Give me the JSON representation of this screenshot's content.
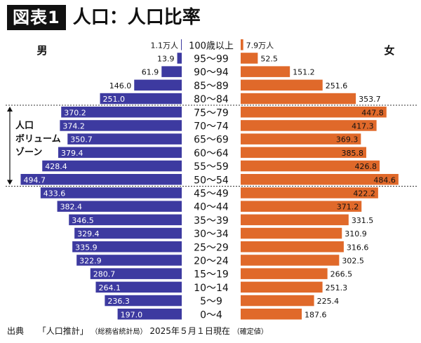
{
  "header": {
    "badge": "図表1",
    "title": "人口：人口比率"
  },
  "colors": {
    "male": "#3d3aa0",
    "female": "#e0692a",
    "text": "#111111"
  },
  "source": {
    "label": "出典",
    "publication": "「人口推計」",
    "agency": "（総務省統計局）",
    "date": "2025年５月１日現在",
    "status": "（確定値）"
  },
  "chart_data": {
    "type": "bar",
    "orientation": "horizontal",
    "title": "人口：人口比率",
    "male_label": "男",
    "female_label": "女",
    "volume_label": [
      "人口",
      "ボリューム",
      "ゾーン"
    ],
    "unit": "万人",
    "categories": [
      "100歳以上",
      "95〜99",
      "90〜94",
      "85〜89",
      "80〜84",
      "75〜79",
      "70〜74",
      "65〜69",
      "60〜64",
      "55〜59",
      "50〜54",
      "45〜49",
      "40〜44",
      "35〜39",
      "30〜34",
      "25〜29",
      "20〜24",
      "15〜19",
      "10〜14",
      "5〜9",
      "0〜4"
    ],
    "series": [
      {
        "name": "男",
        "values": [
          1.1,
          13.9,
          61.9,
          146.0,
          251.0,
          370.2,
          374.2,
          350.7,
          379.4,
          428.4,
          494.7,
          433.6,
          382.4,
          346.5,
          329.4,
          335.9,
          322.9,
          280.7,
          264.1,
          236.3,
          197.0
        ],
        "labels": [
          "1.1万人",
          "13.9",
          "61.9",
          "146.0",
          "251.0",
          "370.2",
          "374.2",
          "350.7",
          "379.4",
          "428.4",
          "494.7",
          "433.6",
          "382.4",
          "346.5",
          "329.4",
          "335.9",
          "322.9",
          "280.7",
          "264.1",
          "236.3",
          "197.0"
        ]
      },
      {
        "name": "女",
        "values": [
          7.9,
          52.5,
          151.2,
          251.6,
          353.7,
          447.8,
          417.3,
          369.3,
          385.8,
          426.8,
          484.6,
          422.2,
          371.2,
          331.5,
          310.9,
          316.6,
          302.5,
          266.5,
          251.3,
          225.4,
          187.6
        ],
        "labels": [
          "7.9万人",
          "52.5",
          "151.2",
          "251.6",
          "353.7",
          "447.8",
          "417.3",
          "369.3",
          "385.8",
          "426.8",
          "484.6",
          "422.2",
          "371.2",
          "331.5",
          "310.9",
          "316.6",
          "302.5",
          "266.5",
          "251.3",
          "225.4",
          "187.6"
        ]
      }
    ],
    "volume_zone": [
      "75〜79",
      "50〜54"
    ],
    "xlim": [
      0,
      500
    ]
  }
}
